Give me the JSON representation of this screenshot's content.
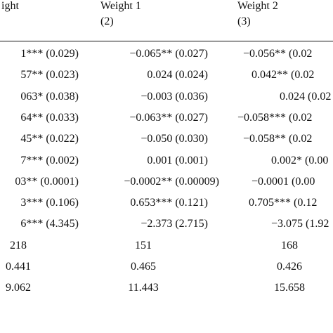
{
  "header": {
    "col1": "ight",
    "col2": "Weight 1",
    "col2_num": "(2)",
    "col3": "Weight 2",
    "col3_num": "(3)"
  },
  "rows": [
    {
      "c1": "1*** (0.029)",
      "c2": "−0.065** (0.027)",
      "c3": "−0.056** (0.02"
    },
    {
      "c1": "57** (0.023)",
      "c2": "0.024 (0.024)",
      "c3": "0.042** (0.02"
    },
    {
      "c1": "063* (0.038)",
      "c2": "−0.003 (0.036)",
      "c3": "0.024 (0.02"
    },
    {
      "c1": "64** (0.033)",
      "c2": "−0.063** (0.027)",
      "c3": "−0.058*** (0.02"
    },
    {
      "c1": "45** (0.022)",
      "c2": "−0.050 (0.030)",
      "c3": "−0.058** (0.02"
    },
    {
      "c1": "7*** (0.002)",
      "c2": "0.001 (0.001)",
      "c3": "0.002* (0.00"
    },
    {
      "c1": "03** (0.0001)",
      "c2": "−0.0002** (0.00009)",
      "c3": "−0.0001 (0.00"
    },
    {
      "c1": "3*** (0.106)",
      "c2": "0.653*** (0.121)",
      "c3": "0.705*** (0.12"
    },
    {
      "c1": "6*** (4.345)",
      "c2": "−2.373 (2.715)",
      "c3": "−3.075 (1.92"
    },
    {
      "c1": "218",
      "c2": "151",
      "c3": "168"
    },
    {
      "c1": "0.441",
      "c2": "0.465",
      "c3": "0.426"
    },
    {
      "c1": "9.062",
      "c2": "11.443",
      "c3": "15.658"
    }
  ]
}
